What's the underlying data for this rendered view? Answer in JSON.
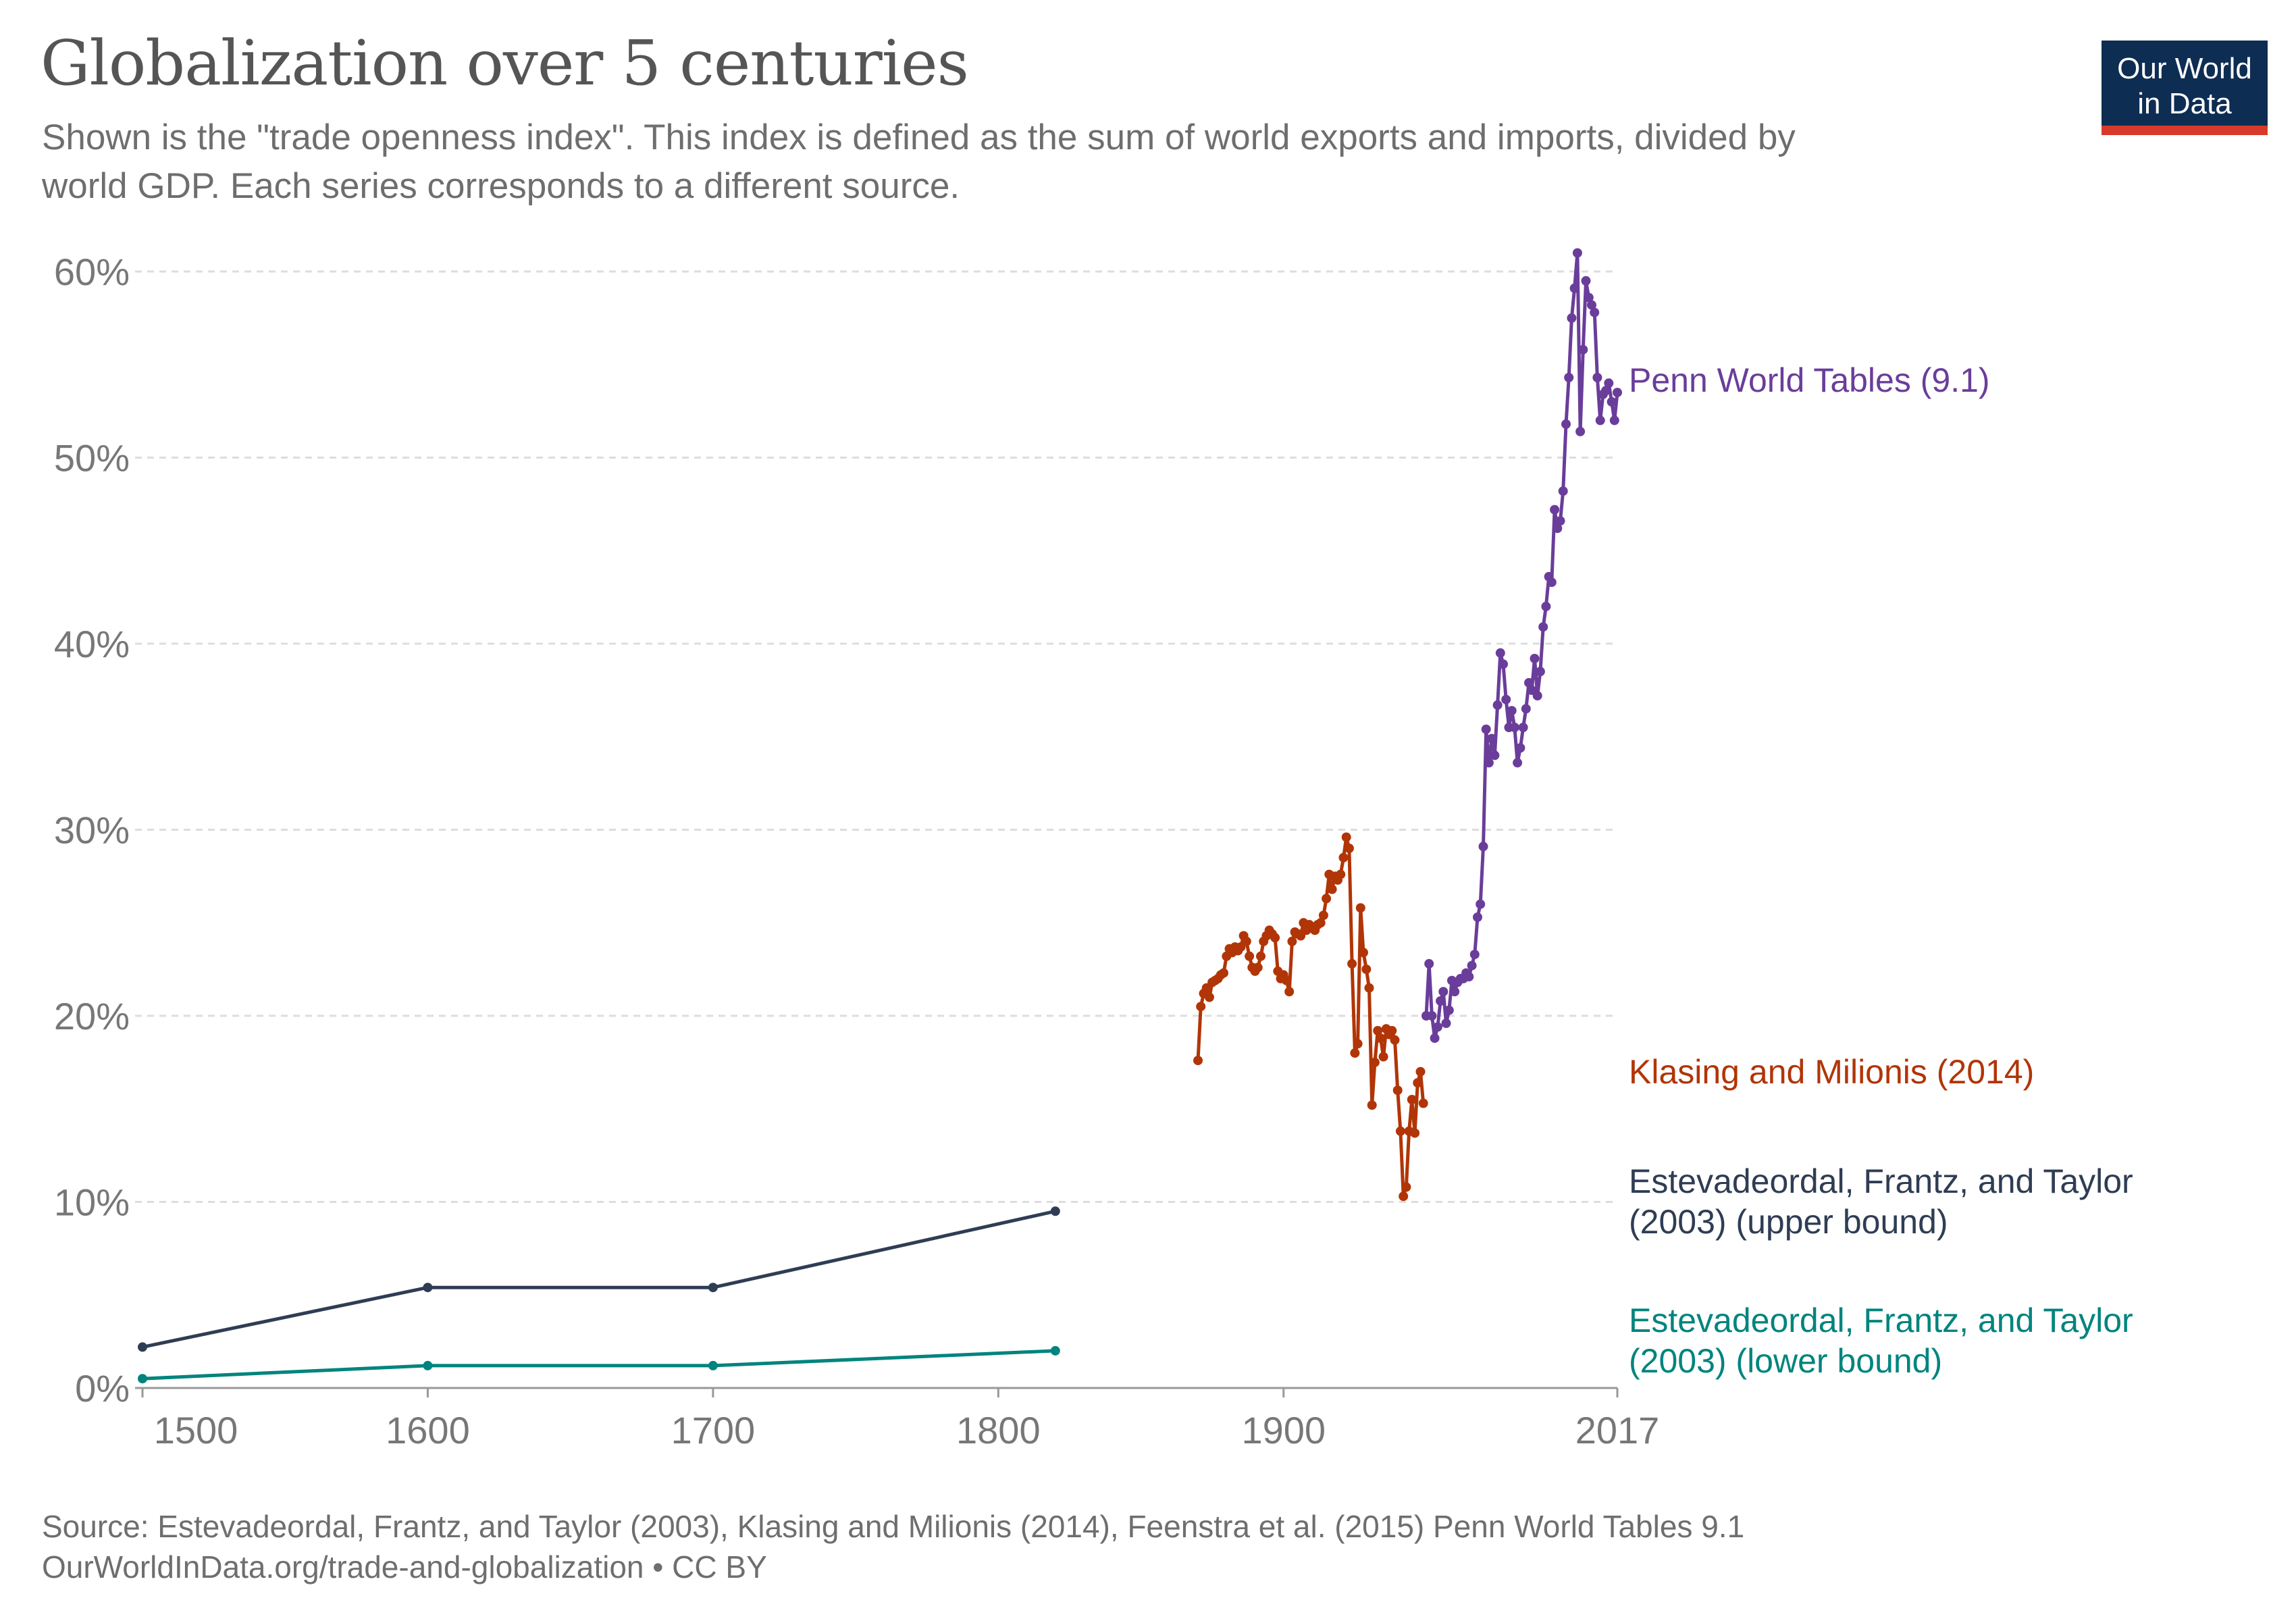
{
  "header": {
    "title": "Globalization over 5 centuries",
    "subtitle": "Shown is the \"trade openness index\". This index is defined as the sum of world exports and imports, divided by world GDP. Each series corresponds to a different source.",
    "logo_line1": "Our World",
    "logo_line2": "in Data"
  },
  "footer": {
    "source": "Source: Estevadeordal, Frantz, and Taylor (2003), Klasing and Milionis (2014), Feenstra et al. (2015) Penn World Tables 9.1",
    "credit": "OurWorldInData.org/trade-and-globalization • CC BY"
  },
  "colors": {
    "penn": "#6a3d9a",
    "klasing": "#b13507",
    "eft_upper": "#2f3d54",
    "eft_lower": "#00847e",
    "logo_bg": "#0e2d52",
    "logo_bar": "#d73a2b"
  },
  "chart_data": {
    "type": "line",
    "title": "Globalization over 5 centuries",
    "xlim": [
      1500,
      2017
    ],
    "ylim": [
      0,
      60
    ],
    "x_ticks": [
      {
        "value": 1500,
        "label": "1500"
      },
      {
        "value": 1600,
        "label": "1600"
      },
      {
        "value": 1700,
        "label": "1700"
      },
      {
        "value": 1800,
        "label": "1800"
      },
      {
        "value": 1900,
        "label": "1900"
      },
      {
        "value": 2017,
        "label": "2017"
      }
    ],
    "y_ticks": [
      {
        "value": 0,
        "label": "0%"
      },
      {
        "value": 10,
        "label": "10%"
      },
      {
        "value": 20,
        "label": "20%"
      },
      {
        "value": 30,
        "label": "30%"
      },
      {
        "value": 40,
        "label": "40%"
      },
      {
        "value": 50,
        "label": "50%"
      },
      {
        "value": 60,
        "label": "60%"
      }
    ],
    "grid": "horizontal dashed",
    "series": [
      {
        "key": "penn",
        "name": "Penn World Tables (9.1)",
        "label_lines": [
          "Penn World Tables (9.1)"
        ],
        "x": [
          1950,
          1951,
          1952,
          1953,
          1954,
          1955,
          1956,
          1957,
          1958,
          1959,
          1960,
          1961,
          1962,
          1963,
          1964,
          1965,
          1966,
          1967,
          1968,
          1969,
          1970,
          1971,
          1972,
          1973,
          1974,
          1975,
          1976,
          1977,
          1978,
          1979,
          1980,
          1981,
          1982,
          1983,
          1984,
          1985,
          1986,
          1987,
          1988,
          1989,
          1990,
          1991,
          1992,
          1993,
          1994,
          1995,
          1996,
          1997,
          1998,
          1999,
          2000,
          2001,
          2002,
          2003,
          2004,
          2005,
          2006,
          2007,
          2008,
          2009,
          2010,
          2011,
          2012,
          2013,
          2014,
          2015,
          2016,
          2017
        ],
        "y": [
          20.0,
          22.8,
          20.0,
          18.8,
          19.4,
          20.8,
          21.3,
          19.6,
          20.3,
          21.9,
          21.3,
          21.8,
          22.0,
          22.0,
          22.3,
          22.1,
          22.7,
          23.3,
          25.3,
          26.0,
          29.1,
          35.4,
          33.6,
          34.9,
          34.0,
          36.7,
          39.5,
          38.9,
          37.0,
          35.5,
          36.4,
          35.5,
          33.6,
          34.4,
          35.5,
          36.5,
          37.9,
          37.5,
          39.2,
          37.2,
          38.5,
          40.9,
          42.0,
          43.6,
          43.3,
          47.2,
          46.2,
          46.6,
          48.2,
          51.8,
          54.3,
          57.5,
          59.1,
          61.0,
          51.4,
          55.8,
          59.5,
          58.6,
          58.2,
          57.8,
          54.3,
          52.0,
          53.4,
          53.6,
          54.0,
          53.0,
          52.0,
          53.5
        ]
      },
      {
        "key": "klasing",
        "name": "Klasing and Milionis (2014)",
        "label_lines": [
          "Klasing and Milionis (2014)"
        ],
        "x": [
          1870,
          1871,
          1872,
          1873,
          1874,
          1875,
          1876,
          1877,
          1878,
          1879,
          1880,
          1881,
          1882,
          1883,
          1884,
          1885,
          1886,
          1887,
          1888,
          1889,
          1890,
          1891,
          1892,
          1893,
          1894,
          1895,
          1896,
          1897,
          1898,
          1899,
          1900,
          1901,
          1902,
          1903,
          1904,
          1905,
          1906,
          1907,
          1908,
          1909,
          1910,
          1911,
          1912,
          1913,
          1914,
          1915,
          1916,
          1917,
          1918,
          1919,
          1920,
          1921,
          1922,
          1923,
          1924,
          1925,
          1926,
          1927,
          1928,
          1929,
          1930,
          1931,
          1932,
          1933,
          1934,
          1935,
          1936,
          1937,
          1938,
          1939,
          1940,
          1941,
          1942,
          1943,
          1944,
          1945,
          1946,
          1947,
          1948,
          1949
        ],
        "y": [
          17.6,
          20.5,
          21.2,
          21.5,
          21.0,
          21.8,
          21.9,
          22.0,
          22.2,
          22.3,
          23.2,
          23.6,
          23.4,
          23.7,
          23.5,
          23.7,
          24.3,
          24.0,
          23.2,
          22.6,
          22.4,
          22.6,
          23.2,
          24.0,
          24.3,
          24.6,
          24.4,
          24.2,
          22.4,
          22.0,
          22.2,
          21.9,
          21.3,
          24.0,
          24.5,
          24.4,
          24.3,
          25.0,
          24.6,
          24.9,
          24.7,
          24.6,
          24.9,
          25.0,
          25.4,
          26.3,
          27.6,
          26.8,
          27.5,
          27.3,
          27.6,
          28.5,
          29.6,
          29.0,
          22.8,
          18.0,
          18.5,
          25.8,
          23.4,
          22.5,
          21.5,
          15.2,
          17.5,
          19.2,
          18.8,
          17.8,
          19.3,
          19.0,
          19.2,
          18.7,
          16.0,
          13.8,
          10.3,
          10.8,
          13.8,
          15.5,
          13.7,
          16.4,
          17.0,
          15.3
        ]
      },
      {
        "key": "eft_upper",
        "name": "Estevadeordal, Frantz, and Taylor (2003) (upper bound)",
        "label_lines": [
          "Estevadeordal, Frantz, and Taylor",
          "(2003) (upper bound)"
        ],
        "x": [
          1500,
          1600,
          1700,
          1820
        ],
        "y": [
          2.2,
          5.4,
          5.4,
          9.5
        ]
      },
      {
        "key": "eft_lower",
        "name": "Estevadeordal, Frantz, and Taylor (2003) (lower bound)",
        "label_lines": [
          "Estevadeordal, Frantz, and Taylor",
          "(2003) (lower bound)"
        ],
        "x": [
          1500,
          1600,
          1700,
          1820
        ],
        "y": [
          0.5,
          1.2,
          1.2,
          2.0
        ]
      }
    ]
  }
}
